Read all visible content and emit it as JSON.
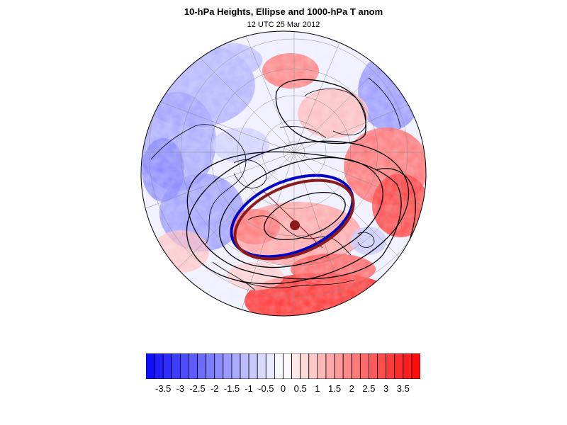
{
  "header": {
    "title": "10-hPa Heights, Ellipse and 1000-hPa T anom",
    "subtitle": "12 UTC 25 Mar 2012"
  },
  "colors": {
    "cold": "#0f0fff",
    "warm": "#ff0d0d",
    "ellipse_10hpa": "#0000c8",
    "ellipse_fit": "#8b1a1a",
    "contour": "#000000"
  },
  "colorbar": {
    "labels": [
      "-3.5",
      "-3",
      "-2.5",
      "-2",
      "-1.5",
      "-1",
      "-0.5",
      "0",
      "0.5",
      "1",
      "1.5",
      "2",
      "2.5",
      "3",
      "3.5"
    ],
    "boxes": 32,
    "min": -4,
    "max": 4
  }
}
